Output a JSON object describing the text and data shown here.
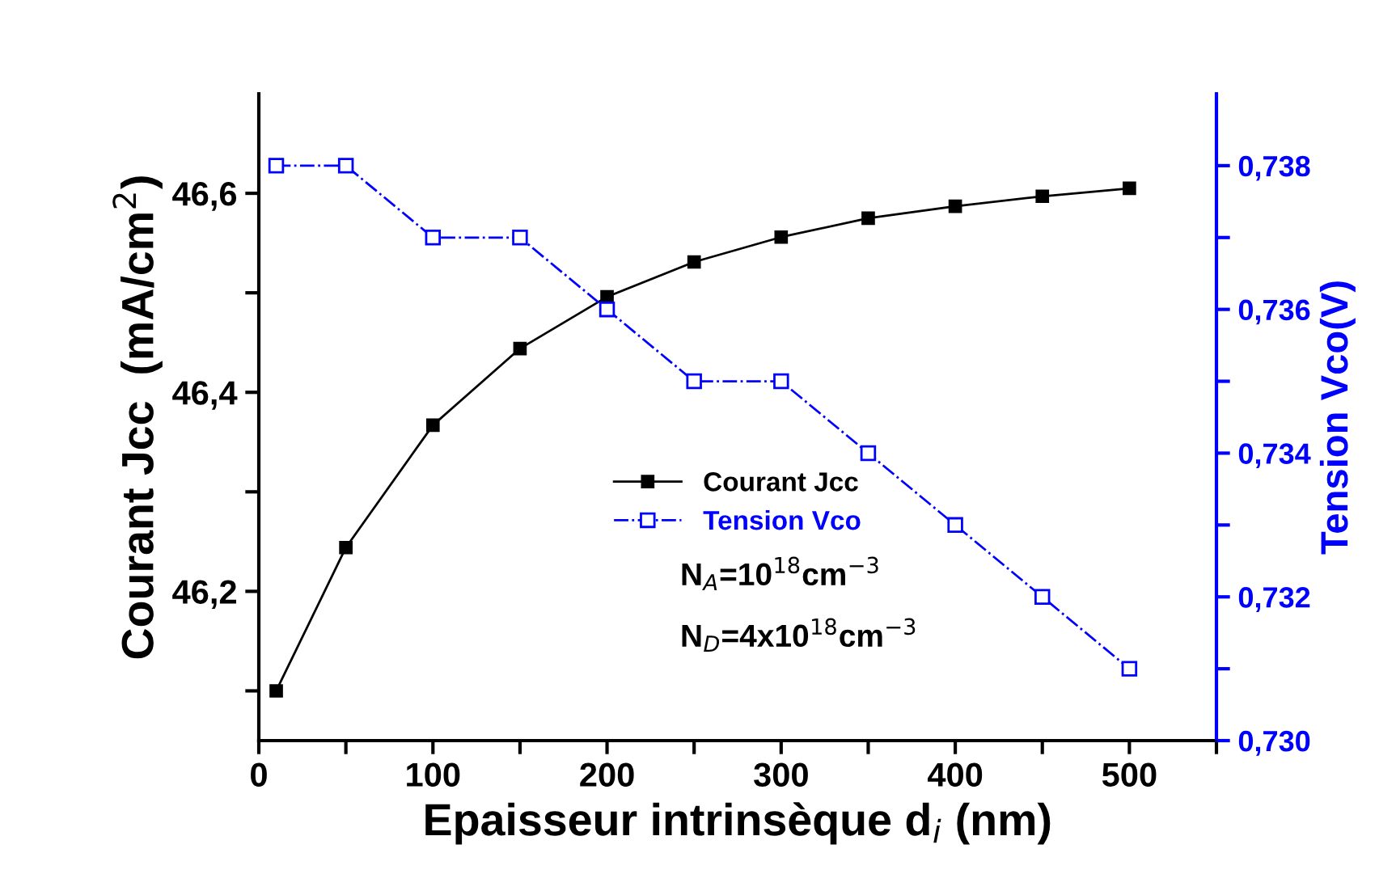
{
  "chart_data": {
    "type": "line",
    "xlabel": "Epaisseur intrinsèque d$_{i}$ (nm)",
    "ylabel": "Courant Jcc  (mA/cm$^{2}$)",
    "y2label": "Tension Vco(V)",
    "x": [
      10,
      50,
      100,
      150,
      200,
      250,
      300,
      350,
      400,
      450,
      500
    ],
    "series": [
      {
        "name": "Courant Jcc",
        "color": "#000000",
        "marker": "square",
        "line_style": "solid",
        "values": [
          46.1,
          46.244,
          46.367,
          46.444,
          46.496,
          46.531,
          46.556,
          46.575,
          46.587,
          46.597,
          46.605
        ]
      },
      {
        "name": "Tension Vco",
        "color": "#0000ff",
        "marker": "square",
        "line_style": "dashed",
        "axis": "y2",
        "values": [
          0.738,
          0.738,
          0.737,
          0.737,
          0.736,
          0.735,
          0.735,
          0.734,
          0.733,
          0.732,
          0.731
        ]
      }
    ],
    "xlim": [
      0,
      550
    ],
    "xticks": [
      0,
      {
        "value": 50,
        "label": null
      },
      100,
      {
        "value": 150,
        "label": null
      },
      200,
      {
        "value": 250,
        "label": null
      },
      300,
      {
        "value": 350,
        "label": null
      },
      400,
      {
        "value": 450,
        "label": null
      },
      500,
      {
        "value": 550,
        "label": null
      }
    ],
    "ylim": [
      46.05,
      46.7
    ],
    "yticks": [
      {
        "value": 46.1,
        "label": null
      },
      {
        "value": 46.2,
        "label": "46,2"
      },
      {
        "value": 46.3,
        "label": null
      },
      {
        "value": 46.4,
        "label": "46,4"
      },
      {
        "value": 46.5,
        "label": null
      },
      {
        "value": 46.6,
        "label": "46,6"
      }
    ],
    "y2lim": [
      0.73,
      0.739
    ],
    "y2ticks": [
      {
        "value": 0.73,
        "label": "0,730"
      },
      {
        "value": 0.731,
        "label": null
      },
      {
        "value": 0.732,
        "label": "0,732"
      },
      {
        "value": 0.733,
        "label": null
      },
      {
        "value": 0.734,
        "label": "0,734"
      },
      {
        "value": 0.735,
        "label": null
      },
      {
        "value": 0.736,
        "label": "0,736"
      },
      {
        "value": 0.737,
        "label": null
      },
      {
        "value": 0.738,
        "label": "0,738"
      }
    ],
    "annotations": [
      "N$_{A}$=10$^{18}$cm$^{−3}$",
      "N$_{D}$=4x10$^{18}$cm$^{−3}$"
    ],
    "legend": "bottom",
    "grid": false
  }
}
